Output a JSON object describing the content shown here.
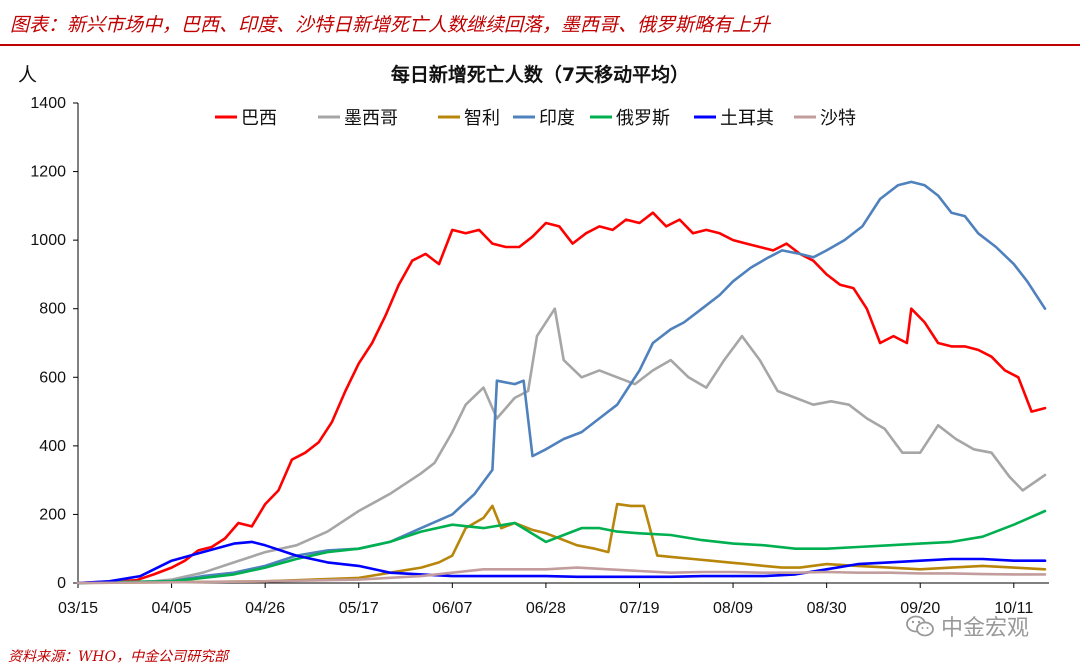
{
  "caption": "图表：新兴市场中，巴西、印度、沙特日新增死亡人数继续回落，墨西哥、俄罗斯略有上升",
  "source": "资料来源：WHO，中金公司研究部",
  "watermark": {
    "icon": "wechat-icon",
    "text": "中金宏观"
  },
  "chart_data": {
    "type": "line",
    "title": "每日新增死亡人数（7天移动平均）",
    "ylabel": "人",
    "xlabel": "",
    "ylim": [
      0,
      1400
    ],
    "yticks": [
      0,
      200,
      400,
      600,
      800,
      1000,
      1200,
      1400
    ],
    "x_range": [
      "03/15",
      "10/18"
    ],
    "xticks": [
      "03/15",
      "04/05",
      "04/26",
      "05/17",
      "06/07",
      "06/28",
      "07/19",
      "08/09",
      "08/30",
      "09/20",
      "10/11"
    ],
    "grid": false,
    "legend_position": "top",
    "series": [
      {
        "name": "巴西",
        "color": "#ff0000",
        "points": [
          [
            "03/15",
            0
          ],
          [
            "03/28",
            8
          ],
          [
            "04/01",
            25
          ],
          [
            "04/05",
            45
          ],
          [
            "04/08",
            65
          ],
          [
            "04/11",
            95
          ],
          [
            "04/14",
            105
          ],
          [
            "04/17",
            130
          ],
          [
            "04/20",
            175
          ],
          [
            "04/23",
            165
          ],
          [
            "04/26",
            230
          ],
          [
            "04/29",
            270
          ],
          [
            "05/02",
            360
          ],
          [
            "05/05",
            380
          ],
          [
            "05/08",
            410
          ],
          [
            "05/11",
            470
          ],
          [
            "05/14",
            560
          ],
          [
            "05/17",
            640
          ],
          [
            "05/20",
            700
          ],
          [
            "05/23",
            780
          ],
          [
            "05/26",
            870
          ],
          [
            "05/29",
            940
          ],
          [
            "06/01",
            960
          ],
          [
            "06/04",
            930
          ],
          [
            "06/07",
            1030
          ],
          [
            "06/10",
            1020
          ],
          [
            "06/13",
            1030
          ],
          [
            "06/16",
            990
          ],
          [
            "06/19",
            980
          ],
          [
            "06/22",
            980
          ],
          [
            "06/25",
            1010
          ],
          [
            "06/28",
            1050
          ],
          [
            "07/01",
            1040
          ],
          [
            "07/04",
            990
          ],
          [
            "07/07",
            1020
          ],
          [
            "07/10",
            1040
          ],
          [
            "07/13",
            1030
          ],
          [
            "07/16",
            1060
          ],
          [
            "07/19",
            1050
          ],
          [
            "07/22",
            1080
          ],
          [
            "07/25",
            1040
          ],
          [
            "07/28",
            1060
          ],
          [
            "07/31",
            1020
          ],
          [
            "08/03",
            1030
          ],
          [
            "08/06",
            1020
          ],
          [
            "08/09",
            1000
          ],
          [
            "08/12",
            990
          ],
          [
            "08/15",
            980
          ],
          [
            "08/18",
            970
          ],
          [
            "08/21",
            990
          ],
          [
            "08/24",
            960
          ],
          [
            "08/27",
            940
          ],
          [
            "08/30",
            900
          ],
          [
            "09/02",
            870
          ],
          [
            "09/05",
            860
          ],
          [
            "09/08",
            800
          ],
          [
            "09/11",
            700
          ],
          [
            "09/14",
            720
          ],
          [
            "09/17",
            700
          ],
          [
            "09/18",
            800
          ],
          [
            "09/21",
            760
          ],
          [
            "09/24",
            700
          ],
          [
            "09/27",
            690
          ],
          [
            "09/30",
            690
          ],
          [
            "10/03",
            680
          ],
          [
            "10/06",
            660
          ],
          [
            "10/09",
            620
          ],
          [
            "10/12",
            600
          ],
          [
            "10/15",
            500
          ],
          [
            "10/18",
            510
          ]
        ]
      },
      {
        "name": "墨西哥",
        "color": "#a6a6a6",
        "points": [
          [
            "03/15",
            0
          ],
          [
            "04/01",
            5
          ],
          [
            "04/05",
            10
          ],
          [
            "04/12",
            30
          ],
          [
            "04/19",
            60
          ],
          [
            "04/26",
            90
          ],
          [
            "05/03",
            110
          ],
          [
            "05/10",
            150
          ],
          [
            "05/17",
            210
          ],
          [
            "05/24",
            260
          ],
          [
            "05/31",
            320
          ],
          [
            "06/03",
            350
          ],
          [
            "06/07",
            440
          ],
          [
            "06/10",
            520
          ],
          [
            "06/14",
            570
          ],
          [
            "06/17",
            480
          ],
          [
            "06/21",
            540
          ],
          [
            "06/24",
            560
          ],
          [
            "06/26",
            720
          ],
          [
            "06/30",
            800
          ],
          [
            "07/02",
            650
          ],
          [
            "07/06",
            600
          ],
          [
            "07/10",
            620
          ],
          [
            "07/14",
            600
          ],
          [
            "07/18",
            580
          ],
          [
            "07/22",
            620
          ],
          [
            "07/26",
            650
          ],
          [
            "07/30",
            600
          ],
          [
            "08/03",
            570
          ],
          [
            "08/07",
            650
          ],
          [
            "08/11",
            720
          ],
          [
            "08/15",
            650
          ],
          [
            "08/19",
            560
          ],
          [
            "08/23",
            540
          ],
          [
            "08/27",
            520
          ],
          [
            "08/31",
            530
          ],
          [
            "09/04",
            520
          ],
          [
            "09/08",
            480
          ],
          [
            "09/12",
            450
          ],
          [
            "09/16",
            380
          ],
          [
            "09/20",
            380
          ],
          [
            "09/24",
            460
          ],
          [
            "09/28",
            420
          ],
          [
            "10/02",
            390
          ],
          [
            "10/06",
            380
          ],
          [
            "10/10",
            310
          ],
          [
            "10/13",
            270
          ],
          [
            "10/18",
            315
          ]
        ]
      },
      {
        "name": "智利",
        "color": "#b8860b",
        "points": [
          [
            "03/15",
            0
          ],
          [
            "04/26",
            5
          ],
          [
            "05/17",
            15
          ],
          [
            "05/24",
            30
          ],
          [
            "05/31",
            45
          ],
          [
            "06/04",
            60
          ],
          [
            "06/07",
            80
          ],
          [
            "06/10",
            160
          ],
          [
            "06/14",
            190
          ],
          [
            "06/16",
            225
          ],
          [
            "06/18",
            160
          ],
          [
            "06/21",
            175
          ],
          [
            "06/25",
            155
          ],
          [
            "06/28",
            145
          ],
          [
            "07/01",
            130
          ],
          [
            "07/05",
            110
          ],
          [
            "07/09",
            100
          ],
          [
            "07/12",
            90
          ],
          [
            "07/14",
            230
          ],
          [
            "07/17",
            225
          ],
          [
            "07/20",
            225
          ],
          [
            "07/23",
            80
          ],
          [
            "07/27",
            75
          ],
          [
            "07/31",
            70
          ],
          [
            "08/04",
            65
          ],
          [
            "08/08",
            60
          ],
          [
            "08/12",
            55
          ],
          [
            "08/16",
            50
          ],
          [
            "08/20",
            45
          ],
          [
            "08/24",
            45
          ],
          [
            "08/30",
            55
          ],
          [
            "09/06",
            50
          ],
          [
            "09/13",
            45
          ],
          [
            "09/20",
            40
          ],
          [
            "09/27",
            45
          ],
          [
            "10/04",
            50
          ],
          [
            "10/11",
            45
          ],
          [
            "10/18",
            40
          ]
        ]
      },
      {
        "name": "印度",
        "color": "#4f81bd",
        "points": [
          [
            "03/15",
            0
          ],
          [
            "04/05",
            5
          ],
          [
            "04/12",
            20
          ],
          [
            "04/19",
            30
          ],
          [
            "04/26",
            50
          ],
          [
            "05/03",
            80
          ],
          [
            "05/10",
            95
          ],
          [
            "05/17",
            100
          ],
          [
            "05/24",
            120
          ],
          [
            "05/31",
            160
          ],
          [
            "06/07",
            200
          ],
          [
            "06/12",
            260
          ],
          [
            "06/16",
            330
          ],
          [
            "06/17",
            590
          ],
          [
            "06/21",
            580
          ],
          [
            "06/23",
            590
          ],
          [
            "06/25",
            370
          ],
          [
            "06/28",
            390
          ],
          [
            "07/02",
            420
          ],
          [
            "07/06",
            440
          ],
          [
            "07/10",
            480
          ],
          [
            "07/14",
            520
          ],
          [
            "07/19",
            620
          ],
          [
            "07/22",
            700
          ],
          [
            "07/26",
            740
          ],
          [
            "07/29",
            760
          ],
          [
            "08/02",
            800
          ],
          [
            "08/06",
            840
          ],
          [
            "08/09",
            880
          ],
          [
            "08/13",
            920
          ],
          [
            "08/17",
            950
          ],
          [
            "08/20",
            970
          ],
          [
            "08/24",
            960
          ],
          [
            "08/27",
            950
          ],
          [
            "08/30",
            970
          ],
          [
            "09/03",
            1000
          ],
          [
            "09/07",
            1040
          ],
          [
            "09/11",
            1120
          ],
          [
            "09/15",
            1160
          ],
          [
            "09/18",
            1170
          ],
          [
            "09/21",
            1160
          ],
          [
            "09/24",
            1130
          ],
          [
            "09/27",
            1080
          ],
          [
            "09/30",
            1070
          ],
          [
            "10/03",
            1020
          ],
          [
            "10/07",
            980
          ],
          [
            "10/11",
            930
          ],
          [
            "10/14",
            880
          ],
          [
            "10/18",
            800
          ]
        ]
      },
      {
        "name": "俄罗斯",
        "color": "#00b050",
        "points": [
          [
            "03/15",
            0
          ],
          [
            "04/05",
            5
          ],
          [
            "04/12",
            15
          ],
          [
            "04/19",
            25
          ],
          [
            "04/26",
            45
          ],
          [
            "05/03",
            70
          ],
          [
            "05/10",
            90
          ],
          [
            "05/17",
            100
          ],
          [
            "05/24",
            120
          ],
          [
            "05/31",
            150
          ],
          [
            "06/07",
            170
          ],
          [
            "06/14",
            160
          ],
          [
            "06/21",
            175
          ],
          [
            "06/28",
            120
          ],
          [
            "07/02",
            140
          ],
          [
            "07/06",
            160
          ],
          [
            "07/10",
            160
          ],
          [
            "07/14",
            150
          ],
          [
            "07/19",
            145
          ],
          [
            "07/26",
            140
          ],
          [
            "08/02",
            125
          ],
          [
            "08/09",
            115
          ],
          [
            "08/16",
            110
          ],
          [
            "08/23",
            100
          ],
          [
            "08/30",
            100
          ],
          [
            "09/06",
            105
          ],
          [
            "09/13",
            110
          ],
          [
            "09/20",
            115
          ],
          [
            "09/27",
            120
          ],
          [
            "10/04",
            135
          ],
          [
            "10/11",
            170
          ],
          [
            "10/18",
            210
          ]
        ]
      },
      {
        "name": "土耳其",
        "color": "#0000ff",
        "points": [
          [
            "03/15",
            0
          ],
          [
            "03/22",
            5
          ],
          [
            "03/29",
            20
          ],
          [
            "04/05",
            65
          ],
          [
            "04/12",
            90
          ],
          [
            "04/19",
            115
          ],
          [
            "04/23",
            120
          ],
          [
            "04/26",
            110
          ],
          [
            "05/03",
            80
          ],
          [
            "05/10",
            60
          ],
          [
            "05/17",
            50
          ],
          [
            "05/24",
            30
          ],
          [
            "05/31",
            25
          ],
          [
            "06/07",
            20
          ],
          [
            "06/14",
            20
          ],
          [
            "06/21",
            20
          ],
          [
            "06/28",
            20
          ],
          [
            "07/05",
            18
          ],
          [
            "07/12",
            18
          ],
          [
            "07/19",
            18
          ],
          [
            "07/26",
            18
          ],
          [
            "08/02",
            20
          ],
          [
            "08/09",
            20
          ],
          [
            "08/16",
            20
          ],
          [
            "08/23",
            25
          ],
          [
            "08/30",
            40
          ],
          [
            "09/06",
            55
          ],
          [
            "09/13",
            60
          ],
          [
            "09/20",
            65
          ],
          [
            "09/27",
            70
          ],
          [
            "10/04",
            70
          ],
          [
            "10/11",
            65
          ],
          [
            "10/18",
            65
          ]
        ]
      },
      {
        "name": "沙特",
        "color": "#c39d9d",
        "points": [
          [
            "03/15",
            0
          ],
          [
            "04/05",
            2
          ],
          [
            "04/26",
            5
          ],
          [
            "05/17",
            10
          ],
          [
            "05/31",
            20
          ],
          [
            "06/07",
            30
          ],
          [
            "06/14",
            40
          ],
          [
            "06/21",
            40
          ],
          [
            "06/28",
            40
          ],
          [
            "07/05",
            45
          ],
          [
            "07/12",
            40
          ],
          [
            "07/19",
            35
          ],
          [
            "07/26",
            30
          ],
          [
            "08/02",
            32
          ],
          [
            "08/09",
            32
          ],
          [
            "08/16",
            30
          ],
          [
            "08/23",
            30
          ],
          [
            "08/30",
            32
          ],
          [
            "09/06",
            30
          ],
          [
            "09/13",
            30
          ],
          [
            "09/20",
            28
          ],
          [
            "09/27",
            28
          ],
          [
            "10/04",
            26
          ],
          [
            "10/11",
            25
          ],
          [
            "10/18",
            25
          ]
        ]
      }
    ]
  }
}
